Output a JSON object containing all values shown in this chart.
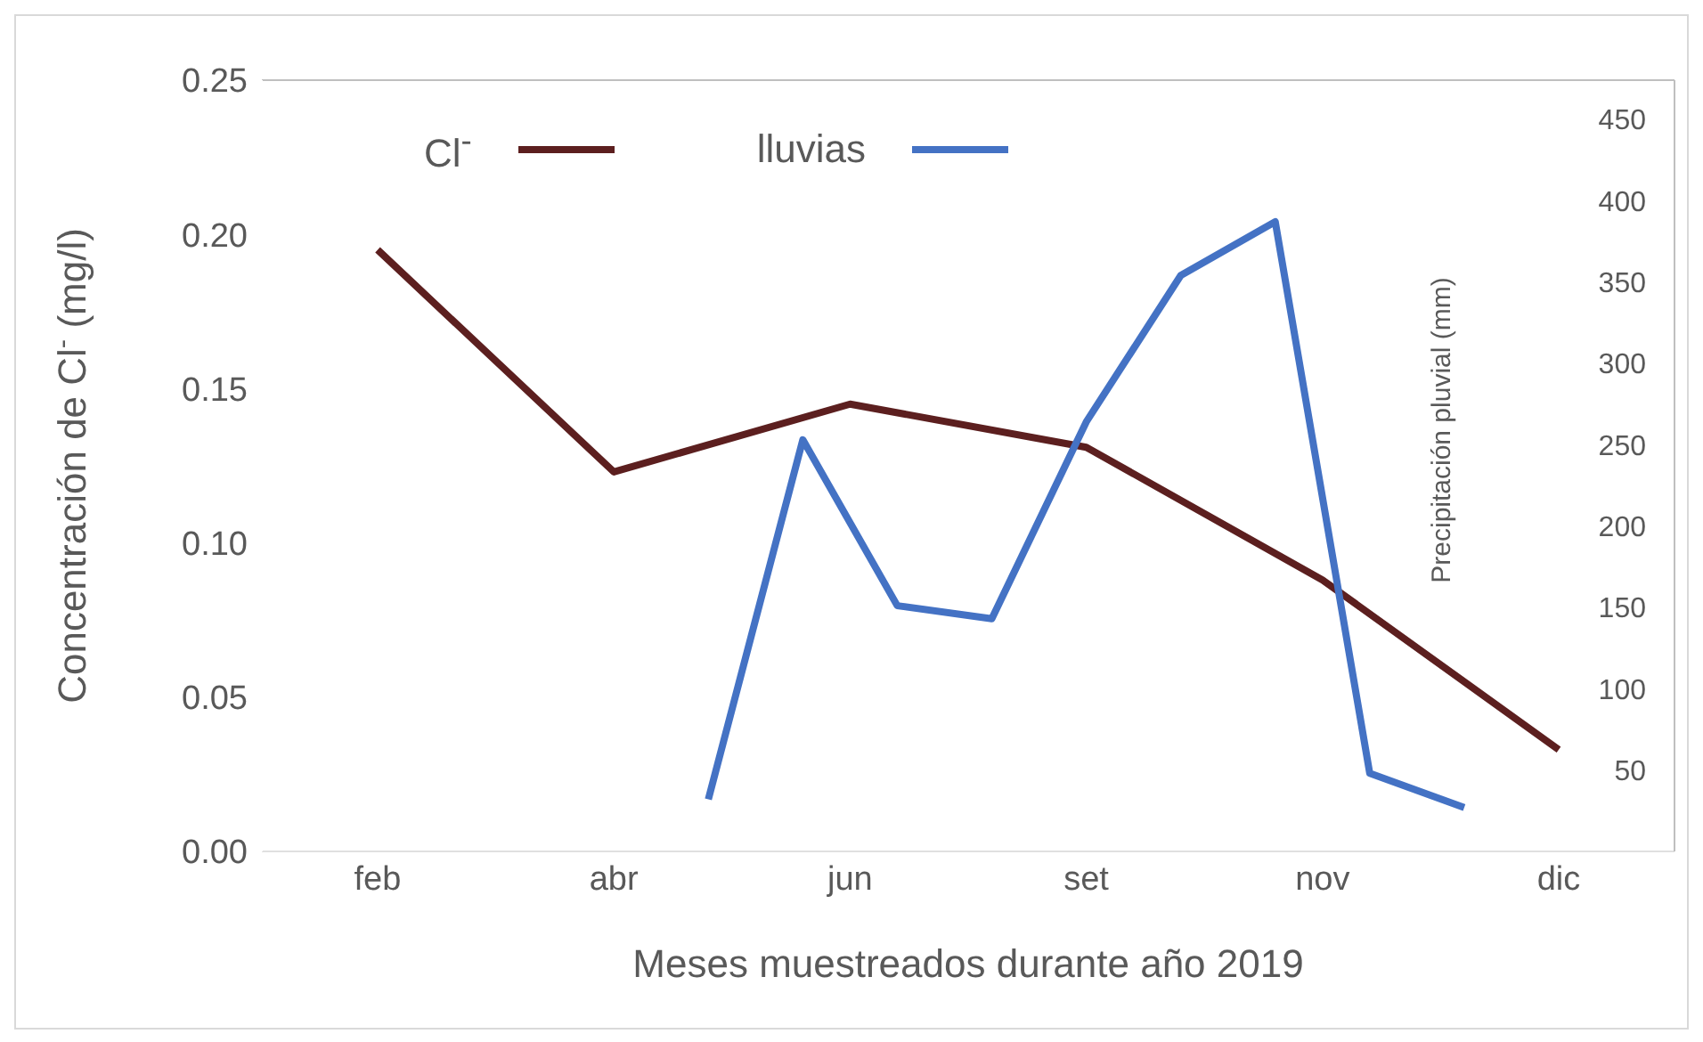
{
  "chart_data": {
    "type": "line",
    "xlabel": "Meses muestreados durante año 2019",
    "ylabel": "Concentración de Cl$^{-}$  (mg/l)",
    "y2label": "Precipitación pluvial (mm)",
    "categories": [
      "feb",
      null,
      null,
      null,
      null,
      "abr",
      null,
      null,
      null,
      null,
      "jun",
      null,
      null,
      null,
      null,
      "set",
      null,
      null,
      null,
      null,
      "nov",
      null,
      null,
      null,
      null,
      "dic"
    ],
    "series": [
      {
        "name": "Cl$^{-}$",
        "color": "#5c1f1f",
        "values": [
          0.195,
          null,
          null,
          null,
          null,
          0.123,
          null,
          null,
          null,
          null,
          0.145,
          null,
          null,
          null,
          null,
          0.131,
          null,
          null,
          null,
          null,
          0.088,
          null,
          null,
          null,
          null,
          0.033
        ]
      },
      {
        "name": "lluvias",
        "color": "#4472c4",
        "axis": "y2",
        "values": [
          null,
          null,
          null,
          null,
          null,
          null,
          null,
          32,
          null,
          253,
          null,
          151,
          null,
          143,
          null,
          264,
          null,
          354,
          null,
          387,
          null,
          48,
          null,
          27,
          null,
          null
        ]
      }
    ],
    "ylim": [
      0,
      0.25
    ],
    "yticks": [
      {
        "value": 0,
        "label": "0.00"
      },
      {
        "value": 0.05,
        "label": "0.05"
      },
      {
        "value": 0.1,
        "label": "0.10"
      },
      {
        "value": 0.15,
        "label": "0.15"
      },
      {
        "value": 0.2,
        "label": "0.20"
      },
      {
        "value": 0.25,
        "label": "0.25"
      }
    ],
    "y2lim": [
      0,
      474
    ],
    "y2ticks": [
      50,
      100,
      150,
      200,
      250,
      300,
      350,
      400,
      450
    ],
    "grid": false,
    "legend": "top",
    "marker": "none",
    "line_style": "solid"
  }
}
